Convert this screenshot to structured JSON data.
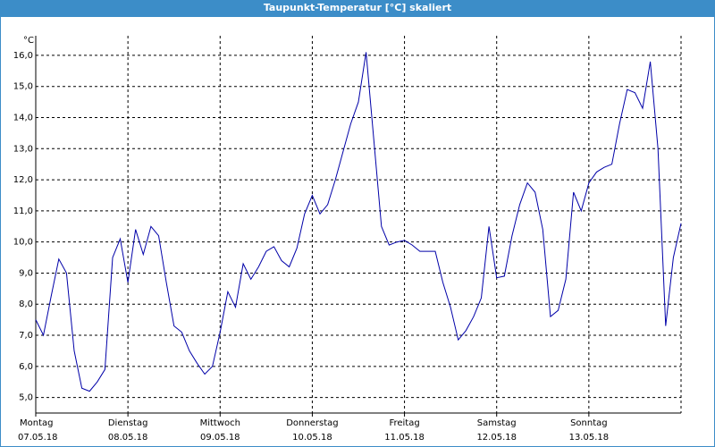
{
  "chart_data": {
    "type": "line",
    "title": "Taupunkt-Temperatur [°C] skaliert",
    "unit_label": "°C",
    "color": "#0000a8",
    "grid": true,
    "ylim": [
      4.5,
      16.63
    ],
    "yticks": [
      {
        "value": 5,
        "label": "5,0"
      },
      {
        "value": 6,
        "label": "6,0"
      },
      {
        "value": 7,
        "label": "7,0"
      },
      {
        "value": 8,
        "label": "8,0"
      },
      {
        "value": 9,
        "label": "9,0"
      },
      {
        "value": 10,
        "label": "10,0"
      },
      {
        "value": 11,
        "label": "11,0"
      },
      {
        "value": 12,
        "label": "12,0"
      },
      {
        "value": 13,
        "label": "13,0"
      },
      {
        "value": 14,
        "label": "14,0"
      },
      {
        "value": 15,
        "label": "15,0"
      },
      {
        "value": 16,
        "label": "16,0"
      }
    ],
    "x_labels": [
      {
        "weekday": "Montag",
        "date": "07.05.18"
      },
      {
        "weekday": "Dienstag",
        "date": "08.05.18"
      },
      {
        "weekday": "Mittwoch",
        "date": "09.05.18"
      },
      {
        "weekday": "Donnerstag",
        "date": "10.05.18"
      },
      {
        "weekday": "Freitag",
        "date": "11.05.18"
      },
      {
        "weekday": "Samstag",
        "date": "12.05.18"
      },
      {
        "weekday": "Sonntag",
        "date": "13.05.18"
      }
    ],
    "values": [
      7.5,
      7.0,
      8.25,
      9.45,
      9.0,
      6.5,
      5.3,
      5.2,
      5.5,
      5.9,
      9.5,
      10.1,
      8.7,
      10.4,
      9.6,
      10.5,
      10.2,
      8.7,
      7.3,
      7.1,
      6.5,
      6.1,
      5.75,
      6.0,
      7.1,
      8.4,
      7.9,
      9.3,
      8.8,
      9.2,
      9.7,
      9.85,
      9.4,
      9.2,
      9.8,
      10.9,
      11.5,
      10.9,
      11.2,
      12.0,
      12.9,
      13.8,
      14.5,
      16.1,
      13.3,
      10.5,
      9.9,
      10.0,
      10.05,
      9.9,
      9.7,
      9.7,
      9.7,
      8.7,
      7.9,
      6.85,
      7.15,
      7.6,
      8.2,
      10.5,
      8.85,
      8.9,
      10.2,
      11.2,
      11.9,
      11.6,
      10.4,
      7.6,
      7.8,
      8.8,
      11.6,
      11.0,
      11.9,
      12.25,
      12.4,
      12.5,
      13.8,
      14.9,
      14.8,
      14.3,
      15.8,
      13.0,
      7.3,
      9.5,
      10.6
    ]
  }
}
